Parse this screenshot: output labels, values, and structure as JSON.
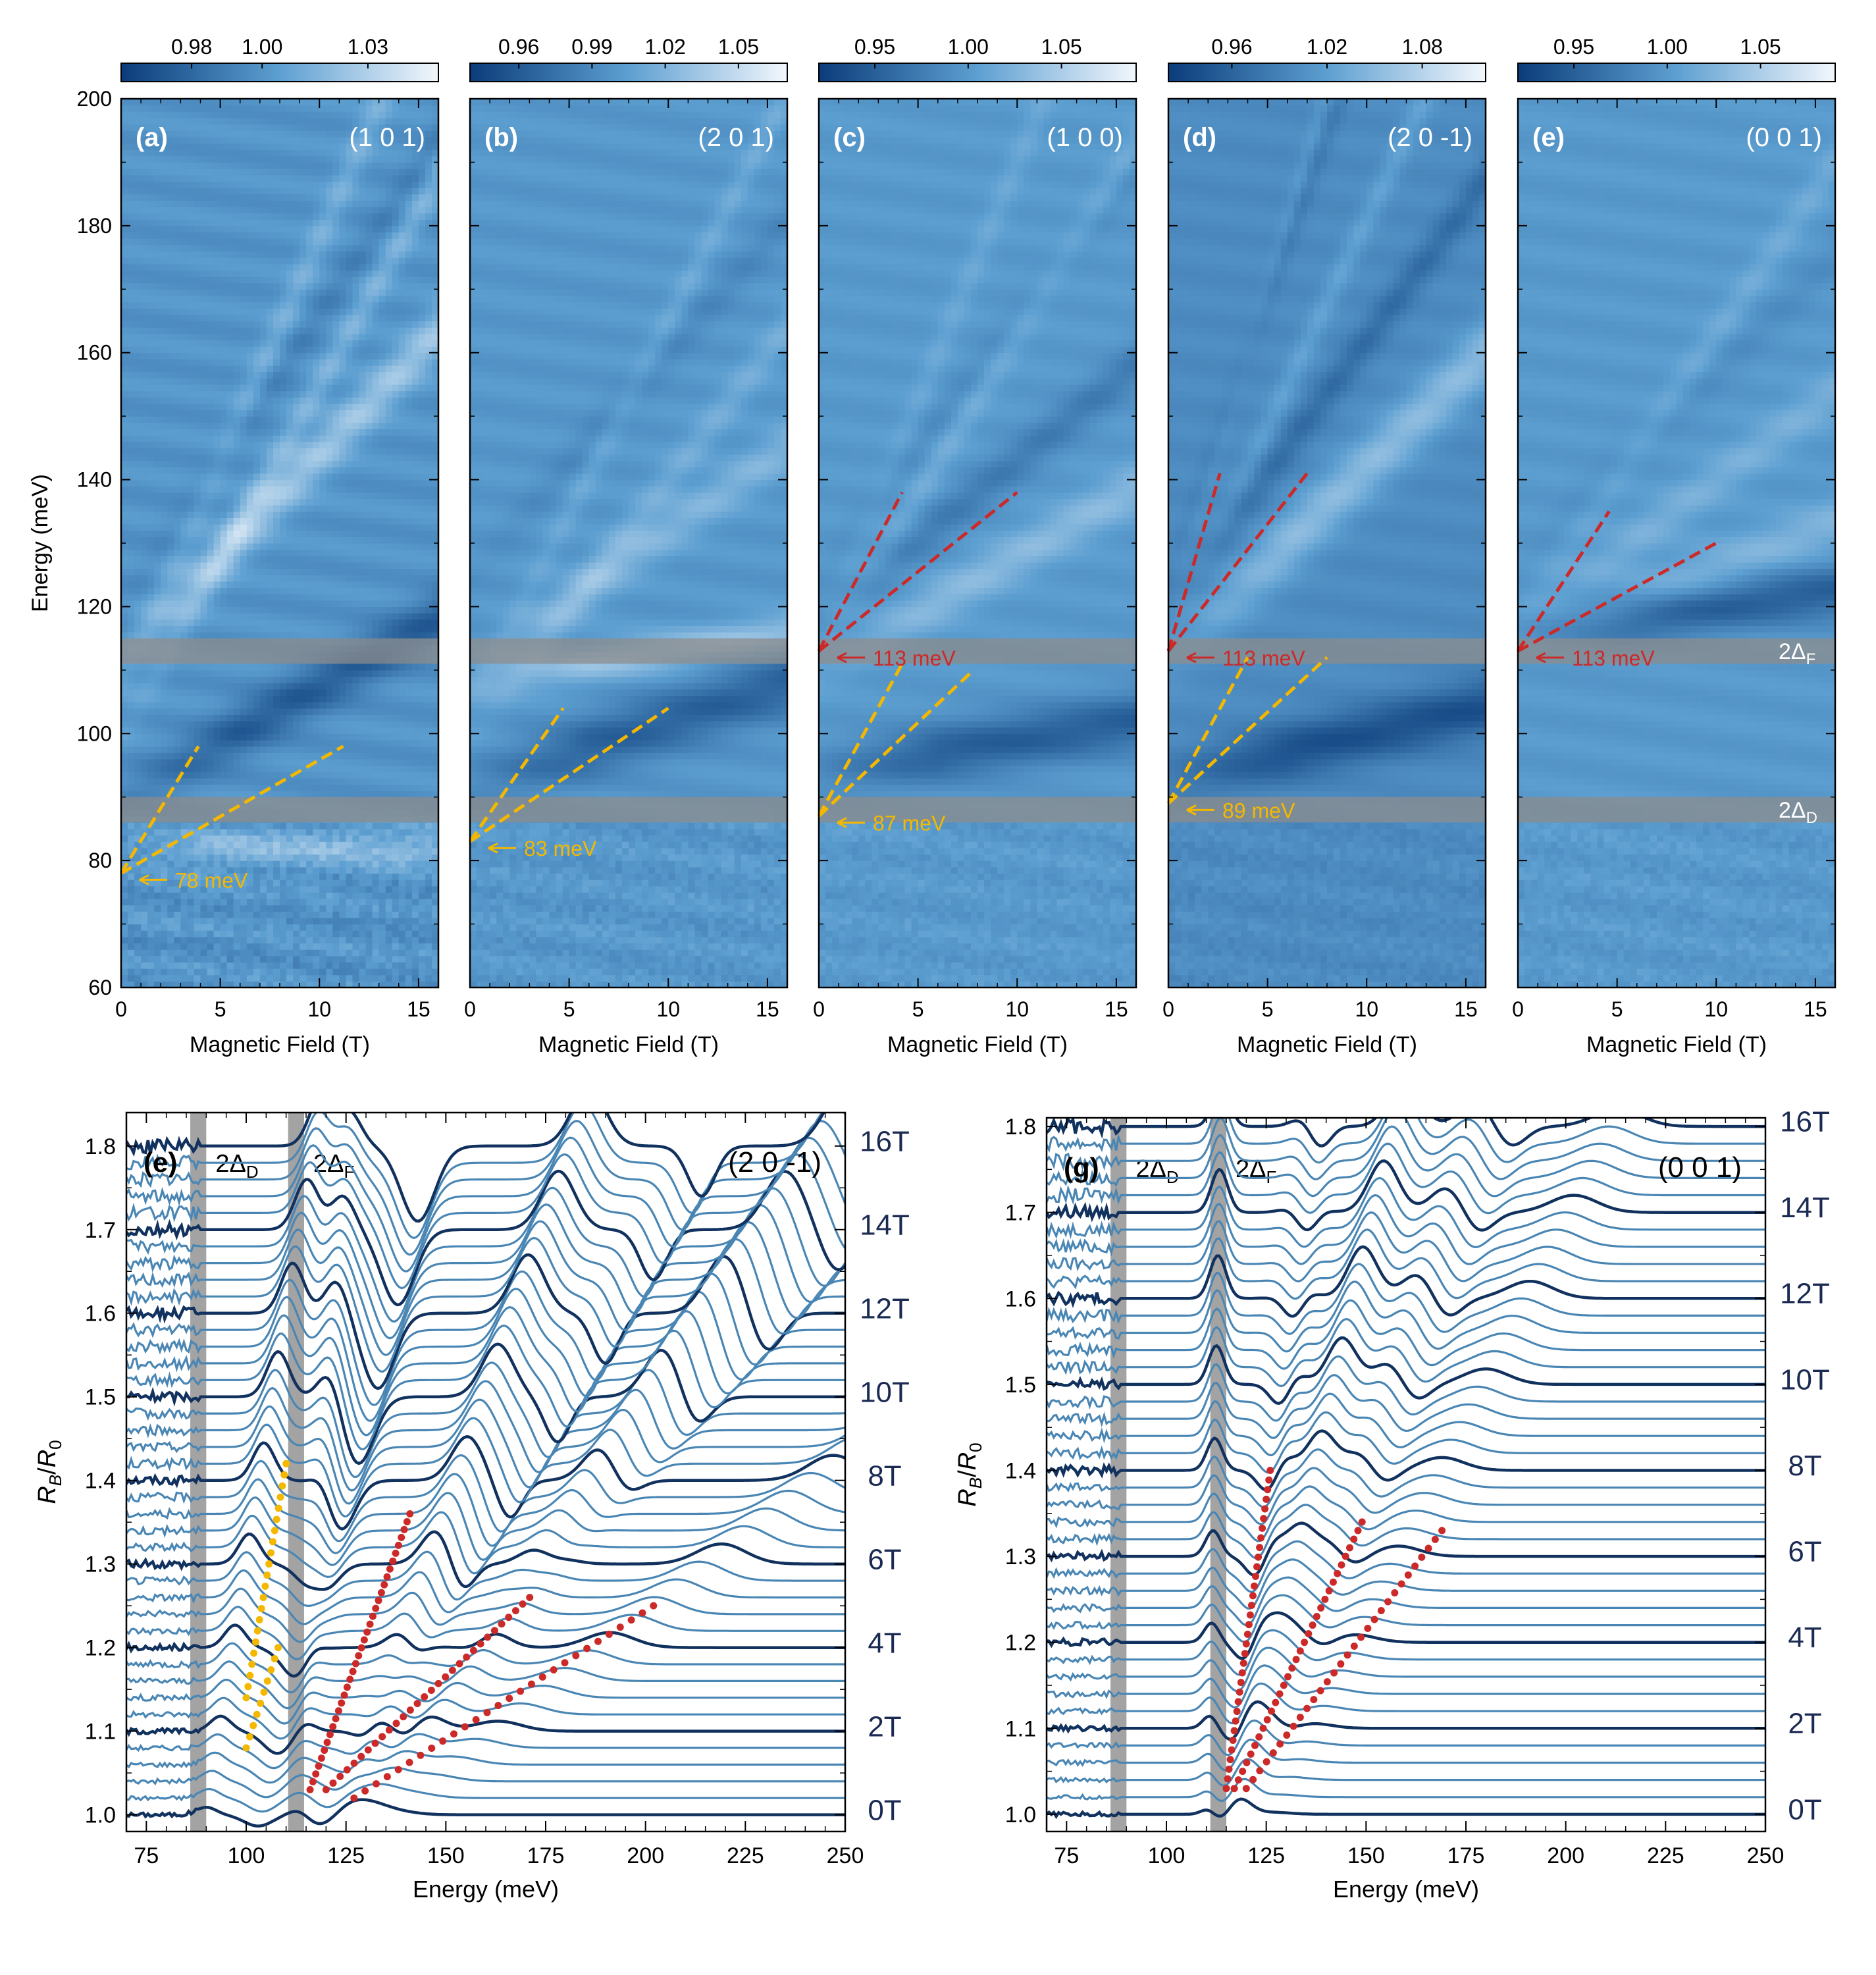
{
  "colors": {
    "map_dark": "#0b3c7a",
    "map_mid": "#5d9fd1",
    "map_light": "#f2f7fc",
    "trace_light": "#4a86b4",
    "trace_dark": "#11315e",
    "gap_band": "#8c8c8c",
    "yellow": "#f5b800",
    "red": "#cc2929",
    "label_navy": "#1a2a52"
  },
  "chart_data": [
    {
      "id": "a",
      "type": "heatmap",
      "panel_label": "(a)",
      "orientation": "(1 0 1)",
      "xlabel": "Magnetic Field (T)",
      "ylabel": "Energy (meV)",
      "xlim": [
        0,
        16
      ],
      "ylim": [
        60,
        200
      ],
      "xticks": [
        "0",
        "5",
        "10",
        "15"
      ],
      "yticks": [
        "60",
        "80",
        "100",
        "120",
        "140",
        "160",
        "180",
        "200"
      ],
      "colorbar": {
        "vmin": 0.96,
        "vmax": 1.05,
        "ticks": [
          0.98,
          1.0,
          1.03
        ],
        "tick_labels": [
          "0.98",
          "1.00",
          "1.03"
        ]
      },
      "gap_bands": [
        {
          "label": "",
          "center": 113,
          "width": 4
        },
        {
          "label": "",
          "center": 88,
          "width": 4
        }
      ],
      "lines": [
        {
          "color": "yellow",
          "from": [
            0,
            78
          ],
          "to": [
            3.9,
            98
          ]
        },
        {
          "color": "yellow",
          "from": [
            0,
            78
          ],
          "to": [
            11.2,
            98
          ]
        }
      ],
      "annotations": [
        {
          "text": "78 meV",
          "color": "yellow",
          "at": [
            0,
            78
          ]
        }
      ],
      "features": [
        {
          "type": "ridge",
          "e0": 90,
          "slope": 1.75,
          "sign": -1,
          "width": 4.5,
          "amp": 0.025,
          "bmax": 16
        },
        {
          "type": "ridge",
          "e0": 112,
          "slope": 3.2,
          "sign": 1,
          "width": 4.5,
          "amp": 0.024,
          "bmax": 16
        },
        {
          "type": "ridge",
          "e0": 100,
          "slope": 5.5,
          "sign": 1,
          "width": 4,
          "amp": 0.014,
          "bmax": 16
        },
        {
          "type": "ridge",
          "e0": 108,
          "slope": 7.0,
          "sign": 1,
          "width": 5,
          "amp": 0.012,
          "bmax": 16
        },
        {
          "type": "ridge",
          "e0": 120,
          "slope": 4.6,
          "sign": -1,
          "width": 4,
          "amp": 0.008,
          "bmax": 16
        },
        {
          "type": "ridge",
          "e0": 82,
          "slope": 0,
          "sign": 1,
          "width": 3,
          "amp": 0.018,
          "bmax": 16
        }
      ]
    },
    {
      "id": "b",
      "type": "heatmap",
      "panel_label": "(b)",
      "orientation": "(2 0 1)",
      "xlabel": "Magnetic Field (T)",
      "ylabel": "",
      "xlim": [
        0,
        16
      ],
      "ylim": [
        60,
        200
      ],
      "xticks": [
        "0",
        "5",
        "10",
        "15"
      ],
      "yticks": [],
      "colorbar": {
        "vmin": 0.94,
        "vmax": 1.07,
        "ticks": [
          0.96,
          0.99,
          1.02,
          1.05
        ],
        "tick_labels": [
          "0.96",
          "0.99",
          "1.02",
          "1.05"
        ]
      },
      "gap_bands": [
        {
          "label": "",
          "center": 113,
          "width": 4
        },
        {
          "label": "",
          "center": 88,
          "width": 4
        }
      ],
      "lines": [
        {
          "color": "yellow",
          "from": [
            0,
            83
          ],
          "to": [
            4.7,
            104
          ]
        },
        {
          "color": "yellow",
          "from": [
            0,
            83
          ],
          "to": [
            10.0,
            104
          ]
        }
      ],
      "annotations": [
        {
          "text": "83 meV",
          "color": "yellow",
          "at": [
            0,
            83
          ]
        }
      ],
      "features": [
        {
          "type": "ridge",
          "e0": 92,
          "slope": 1.0,
          "sign": -1,
          "width": 5,
          "amp": 0.035,
          "bmax": 16
        },
        {
          "type": "ridge",
          "e0": 108,
          "slope": 0.5,
          "sign": 1,
          "width": 3,
          "amp": 0.03,
          "bmax": 16
        },
        {
          "type": "ridge",
          "e0": 110,
          "slope": 2.2,
          "sign": 1,
          "width": 4,
          "amp": 0.02,
          "bmax": 16
        },
        {
          "type": "ridge",
          "e0": 100,
          "slope": 4.0,
          "sign": 1,
          "width": 4,
          "amp": 0.014,
          "bmax": 16
        },
        {
          "type": "ridge",
          "e0": 105,
          "slope": 6.0,
          "sign": 1,
          "width": 4,
          "amp": 0.012,
          "bmax": 16
        },
        {
          "type": "ridge",
          "e0": 125,
          "slope": 3.5,
          "sign": -1,
          "width": 4,
          "amp": 0.01,
          "bmax": 16
        }
      ]
    },
    {
      "id": "c",
      "type": "heatmap",
      "panel_label": "(c)",
      "orientation": "(1 0 0)",
      "xlabel": "Magnetic Field (T)",
      "ylabel": "",
      "xlim": [
        0,
        16
      ],
      "ylim": [
        60,
        200
      ],
      "xticks": [
        "0",
        "5",
        "10",
        "15"
      ],
      "yticks": [],
      "colorbar": {
        "vmin": 0.92,
        "vmax": 1.09,
        "ticks": [
          0.95,
          1.0,
          1.05
        ],
        "tick_labels": [
          "0.95",
          "1.00",
          "1.05"
        ]
      },
      "gap_bands": [
        {
          "label": "",
          "center": 113,
          "width": 4
        },
        {
          "label": "",
          "center": 88,
          "width": 4
        }
      ],
      "lines": [
        {
          "color": "yellow",
          "from": [
            0,
            87
          ],
          "to": [
            4.2,
            111
          ]
        },
        {
          "color": "yellow",
          "from": [
            0,
            87
          ],
          "to": [
            7.8,
            110
          ]
        },
        {
          "color": "red",
          "from": [
            0,
            113
          ],
          "to": [
            4.2,
            138
          ]
        },
        {
          "color": "red",
          "from": [
            0,
            113
          ],
          "to": [
            10.0,
            138
          ]
        }
      ],
      "annotations": [
        {
          "text": "87 meV",
          "color": "yellow",
          "at": [
            0,
            87
          ]
        },
        {
          "text": "113 meV",
          "color": "red",
          "at": [
            0,
            113
          ]
        }
      ],
      "features": [
        {
          "type": "ridge",
          "e0": 94,
          "slope": 0.5,
          "sign": -1,
          "width": 4.5,
          "amp": 0.05,
          "bmax": 16
        },
        {
          "type": "ridge",
          "e0": 110,
          "slope": 1.8,
          "sign": 1,
          "width": 4,
          "amp": 0.03,
          "bmax": 16
        },
        {
          "type": "ridge",
          "e0": 118,
          "slope": 2.5,
          "sign": -1,
          "width": 4,
          "amp": 0.025,
          "bmax": 16
        },
        {
          "type": "ridge",
          "e0": 113,
          "slope": 5.0,
          "sign": 1,
          "width": 4,
          "amp": 0.018,
          "bmax": 16
        },
        {
          "type": "ridge",
          "e0": 125,
          "slope": 4.0,
          "sign": -1,
          "width": 4,
          "amp": 0.012,
          "bmax": 16
        },
        {
          "type": "ridge",
          "e0": 115,
          "slope": 7.5,
          "sign": 1,
          "width": 5,
          "amp": 0.012,
          "bmax": 16
        }
      ]
    },
    {
      "id": "d",
      "type": "heatmap",
      "panel_label": "(d)",
      "orientation": "(2 0 -1)",
      "xlabel": "Magnetic Field (T)",
      "ylabel": "",
      "xlim": [
        0,
        16
      ],
      "ylim": [
        60,
        200
      ],
      "xticks": [
        "0",
        "5",
        "10",
        "15"
      ],
      "yticks": [],
      "colorbar": {
        "vmin": 0.92,
        "vmax": 1.12,
        "ticks": [
          0.96,
          1.02,
          1.08
        ],
        "tick_labels": [
          "0.96",
          "1.02",
          "1.08"
        ]
      },
      "gap_bands": [
        {
          "label": "",
          "center": 113,
          "width": 4
        },
        {
          "label": "",
          "center": 88,
          "width": 4
        }
      ],
      "lines": [
        {
          "color": "yellow",
          "from": [
            0,
            89
          ],
          "to": [
            4.0,
            112
          ]
        },
        {
          "color": "yellow",
          "from": [
            0,
            89
          ],
          "to": [
            8.0,
            112
          ]
        },
        {
          "color": "red",
          "from": [
            0,
            113
          ],
          "to": [
            2.6,
            141
          ]
        },
        {
          "color": "red",
          "from": [
            0,
            113
          ],
          "to": [
            7.0,
            141
          ]
        }
      ],
      "annotations": [
        {
          "text": "89 meV",
          "color": "yellow",
          "at": [
            0,
            89
          ]
        },
        {
          "text": "113 meV",
          "color": "red",
          "at": [
            0,
            113
          ]
        }
      ],
      "features": [
        {
          "type": "ridge",
          "e0": 93,
          "slope": 0.7,
          "sign": -1,
          "width": 4.5,
          "amp": 0.06,
          "bmax": 16
        },
        {
          "type": "ridge",
          "e0": 112,
          "slope": 3.0,
          "sign": 1,
          "width": 5.5,
          "amp": 0.05,
          "bmax": 16
        },
        {
          "type": "ridge",
          "e0": 120,
          "slope": 4.2,
          "sign": -1,
          "width": 4,
          "amp": 0.03,
          "bmax": 16
        },
        {
          "type": "ridge",
          "e0": 116,
          "slope": 6.5,
          "sign": 1,
          "width": 4,
          "amp": 0.022,
          "bmax": 16
        },
        {
          "type": "ridge",
          "e0": 126,
          "slope": 8.5,
          "sign": -1,
          "width": 4,
          "amp": 0.015,
          "bmax": 16
        },
        {
          "type": "ridge",
          "e0": 118,
          "slope": 10.5,
          "sign": 1,
          "width": 4,
          "amp": 0.012,
          "bmax": 16
        }
      ]
    },
    {
      "id": "e_map",
      "type": "heatmap",
      "panel_label": "(e)",
      "orientation": "(0 0 1)",
      "xlabel": "Magnetic Field (T)",
      "ylabel": "",
      "xlim": [
        0,
        16
      ],
      "ylim": [
        60,
        200
      ],
      "xticks": [
        "0",
        "5",
        "10",
        "15"
      ],
      "yticks": [],
      "colorbar": {
        "vmin": 0.92,
        "vmax": 1.09,
        "ticks": [
          0.95,
          1.0,
          1.05
        ],
        "tick_labels": [
          "0.95",
          "1.00",
          "1.05"
        ]
      },
      "gap_bands": [
        {
          "label": "2Δ",
          "sub": "F",
          "center": 113,
          "width": 4
        },
        {
          "label": "2Δ",
          "sub": "D",
          "center": 88,
          "width": 4
        }
      ],
      "lines": [
        {
          "color": "red",
          "from": [
            0,
            113
          ],
          "to": [
            4.6,
            135
          ]
        },
        {
          "color": "red",
          "from": [
            0,
            113
          ],
          "to": [
            10.0,
            130
          ]
        }
      ],
      "annotations": [
        {
          "text": "113 meV",
          "color": "red",
          "at": [
            0,
            113
          ]
        }
      ],
      "features": [
        {
          "type": "ridge",
          "e0": 116,
          "slope": 0.4,
          "sign": -1,
          "width": 4,
          "amp": 0.05,
          "bmax": 16
        },
        {
          "type": "ridge",
          "e0": 114,
          "slope": 1.2,
          "sign": 1,
          "width": 4,
          "amp": 0.025,
          "bmax": 16
        },
        {
          "type": "ridge",
          "e0": 117,
          "slope": 2.3,
          "sign": 1,
          "width": 4,
          "amp": 0.02,
          "bmax": 16
        },
        {
          "type": "ridge",
          "e0": 118,
          "slope": 4.5,
          "sign": 1,
          "width": 4,
          "amp": 0.015,
          "bmax": 16
        },
        {
          "type": "ridge",
          "e0": 127,
          "slope": 3.0,
          "sign": -1,
          "width": 4,
          "amp": 0.01,
          "bmax": 16
        }
      ]
    },
    {
      "id": "e_spectra",
      "type": "line",
      "panel_label": "(e)",
      "orientation": "(2 0 -1)",
      "xlabel": "Energy (meV)",
      "ylabel": "R_B/R_0",
      "xlim": [
        70,
        250
      ],
      "ylim": [
        0.98,
        1.84
      ],
      "xticks": [
        "75",
        "100",
        "125",
        "150",
        "175",
        "200",
        "225",
        "250"
      ],
      "yticks": [
        "1.0",
        "1.1",
        "1.2",
        "1.3",
        "1.4",
        "1.5",
        "1.6",
        "1.7",
        "1.8"
      ],
      "field_labels": [
        "0T",
        "2T",
        "4T",
        "6T",
        "8T",
        "10T",
        "12T",
        "14T",
        "16T"
      ],
      "gap_bands": [
        {
          "label": "2Δ",
          "sub": "D",
          "center": 88,
          "width": 4
        },
        {
          "label": "2Δ",
          "sub": "F",
          "center": 112.5,
          "width": 4
        }
      ],
      "series_count": 41,
      "offset_per_step": 0.02,
      "field_step_T": 0.4,
      "bold_every": 5,
      "dot_lines": [
        {
          "color": "yellow",
          "start": [
            100,
            1.08
          ],
          "end": [
            108,
            1.2
          ],
          "count": 10
        },
        {
          "color": "yellow",
          "start": [
            100,
            1.14
          ],
          "end": [
            110,
            1.42
          ],
          "count": 22
        },
        {
          "color": "red",
          "start": [
            116,
            1.03
          ],
          "end": [
            141,
            1.36
          ],
          "count": 36
        },
        {
          "color": "red",
          "start": [
            120,
            1.03
          ],
          "end": [
            171,
            1.26
          ],
          "count": 30
        },
        {
          "color": "red",
          "start": [
            127,
            1.02
          ],
          "end": [
            202,
            1.25
          ],
          "count": 28
        }
      ],
      "features": [
        {
          "e0": 90,
          "slope": 1.8,
          "sign": 1,
          "width": 3.5,
          "amp": 0.06
        },
        {
          "e0": 103,
          "slope": 2.5,
          "sign": -1,
          "width": 5,
          "amp": 0.09
        },
        {
          "e0": 113,
          "slope": 0.8,
          "sign": 1,
          "width": 3.5,
          "amp": 0.04
        },
        {
          "e0": 118,
          "slope": 6.0,
          "sign": -1,
          "width": 4,
          "amp": 0.06
        },
        {
          "e0": 125,
          "slope": 3.8,
          "sign": 1,
          "width": 5,
          "amp": 0.07
        },
        {
          "e0": 122,
          "slope": 9.0,
          "sign": -1,
          "width": 5,
          "amp": 0.05
        },
        {
          "e0": 130,
          "slope": 7.5,
          "sign": 1,
          "width": 6,
          "amp": 0.07
        },
        {
          "e0": 135,
          "slope": 14.0,
          "sign": 1,
          "width": 8,
          "amp": 0.04
        }
      ]
    },
    {
      "id": "g_spectra",
      "type": "line",
      "panel_label": "(g)",
      "orientation": "(0 0 1)",
      "xlabel": "Energy (meV)",
      "ylabel": "R_B/R_0",
      "xlim": [
        70,
        250
      ],
      "ylim": [
        0.98,
        1.81
      ],
      "xticks": [
        "75",
        "100",
        "125",
        "150",
        "175",
        "200",
        "225",
        "250"
      ],
      "yticks": [
        "1.0",
        "1.1",
        "1.2",
        "1.3",
        "1.4",
        "1.5",
        "1.6",
        "1.7",
        "1.8"
      ],
      "field_labels": [
        "0T",
        "2T",
        "4T",
        "6T",
        "8T",
        "10T",
        "12T",
        "14T",
        "16T"
      ],
      "gap_bands": [
        {
          "label": "2Δ",
          "sub": "D",
          "center": 88,
          "width": 4
        },
        {
          "label": "2Δ",
          "sub": "F",
          "center": 113,
          "width": 4
        }
      ],
      "series_count": 41,
      "offset_per_step": 0.02,
      "field_step_T": 0.4,
      "bold_every": 5,
      "dot_lines": [
        {
          "color": "red",
          "start": [
            115,
            1.03
          ],
          "end": [
            126,
            1.4
          ],
          "count": 34
        },
        {
          "color": "red",
          "start": [
            117,
            1.03
          ],
          "end": [
            149,
            1.34
          ],
          "count": 32
        },
        {
          "color": "red",
          "start": [
            120,
            1.03
          ],
          "end": [
            169,
            1.33
          ],
          "count": 30
        }
      ],
      "features": [
        {
          "e0": 110.5,
          "slope": 0.2,
          "sign": 1,
          "width": 2.5,
          "amp": 0.05
        },
        {
          "e0": 114,
          "slope": 1.5,
          "sign": -1,
          "width": 3.5,
          "amp": 0.07
        },
        {
          "e0": 118,
          "slope": 1.2,
          "sign": 1,
          "width": 4,
          "amp": 0.05
        },
        {
          "e0": 118,
          "slope": 2.6,
          "sign": 1,
          "width": 4.5,
          "amp": 0.06
        },
        {
          "e0": 122,
          "slope": 4.0,
          "sign": -1,
          "width": 4.5,
          "amp": 0.025
        },
        {
          "e0": 120,
          "slope": 3.6,
          "sign": 1,
          "width": 5,
          "amp": 0.03
        },
        {
          "e0": 125,
          "slope": 5.5,
          "sign": 1,
          "width": 7,
          "amp": 0.02
        }
      ]
    }
  ]
}
